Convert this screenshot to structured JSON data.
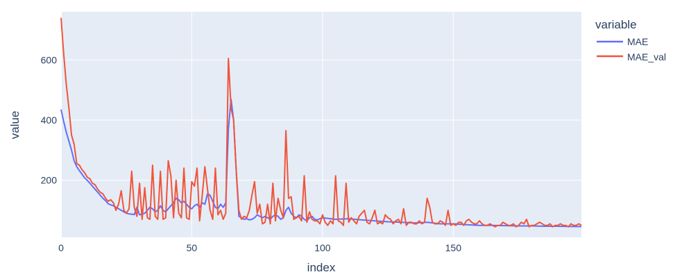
{
  "chart_data": {
    "type": "line",
    "xlabel": "index",
    "ylabel": "value",
    "legend_title": "variable",
    "legend_position": "top-right",
    "grid": true,
    "colors": {
      "plot_bg": "#e5ecf6",
      "grid": "#ffffff",
      "MAE": "#636efa",
      "MAE_val": "#ef553b",
      "text": "#2a3f5f"
    },
    "xlim": [
      0,
      199
    ],
    "ylim": [
      10,
      760
    ],
    "x_ticks": [
      0,
      50,
      100,
      150
    ],
    "y_ticks": [
      200,
      400,
      600
    ],
    "series": [
      {
        "name": "MAE",
        "color": "#636efa",
        "x": [
          0,
          1,
          2,
          3,
          4,
          5,
          6,
          7,
          8,
          9,
          10,
          11,
          12,
          13,
          14,
          15,
          16,
          17,
          18,
          19,
          20,
          21,
          22,
          23,
          24,
          25,
          26,
          27,
          28,
          29,
          30,
          31,
          32,
          33,
          34,
          35,
          36,
          37,
          38,
          39,
          40,
          41,
          42,
          43,
          44,
          45,
          46,
          47,
          48,
          49,
          50,
          51,
          52,
          53,
          54,
          55,
          56,
          57,
          58,
          59,
          60,
          61,
          62,
          63,
          64,
          65,
          66,
          67,
          68,
          69,
          70,
          71,
          72,
          73,
          74,
          75,
          76,
          77,
          78,
          79,
          80,
          81,
          82,
          83,
          84,
          85,
          86,
          87,
          88,
          89,
          90,
          91,
          92,
          93,
          94,
          95,
          96,
          97,
          98,
          99,
          100,
          105,
          110,
          115,
          120,
          125,
          130,
          135,
          140,
          145,
          150,
          155,
          160,
          165,
          170,
          175,
          180,
          185,
          190,
          195,
          199
        ],
        "y": [
          435,
          395,
          360,
          330,
          300,
          265,
          245,
          232,
          220,
          208,
          200,
          190,
          180,
          170,
          160,
          150,
          140,
          132,
          122,
          118,
          115,
          110,
          105,
          100,
          95,
          90,
          88,
          87,
          86,
          110,
          85,
          87,
          90,
          100,
          110,
          105,
          95,
          100,
          115,
          100,
          95,
          105,
          115,
          125,
          140,
          135,
          125,
          130,
          120,
          110,
          105,
          115,
          120,
          110,
          125,
          120,
          155,
          150,
          130,
          110,
          105,
          120,
          110,
          125,
          370,
          470,
          400,
          230,
          80,
          75,
          70,
          72,
          68,
          70,
          75,
          85,
          80,
          75,
          80,
          75,
          70,
          80,
          85,
          80,
          70,
          75,
          100,
          110,
          90,
          80,
          75,
          85,
          80,
          70,
          65,
          75,
          80,
          70,
          68,
          72,
          75,
          70,
          72,
          68,
          65,
          62,
          60,
          58,
          60,
          55,
          55,
          52,
          50,
          50,
          49,
          48,
          48,
          47,
          47,
          46,
          46
        ]
      },
      {
        "name": "MAE_val",
        "color": "#ef553b",
        "x": [
          0,
          1,
          2,
          3,
          4,
          5,
          6,
          7,
          8,
          9,
          10,
          11,
          12,
          13,
          14,
          15,
          16,
          17,
          18,
          19,
          20,
          21,
          22,
          23,
          24,
          25,
          26,
          27,
          28,
          29,
          30,
          31,
          32,
          33,
          34,
          35,
          36,
          37,
          38,
          39,
          40,
          41,
          42,
          43,
          44,
          45,
          46,
          47,
          48,
          49,
          50,
          51,
          52,
          53,
          54,
          55,
          56,
          57,
          58,
          59,
          60,
          61,
          62,
          63,
          64,
          65,
          66,
          67,
          68,
          69,
          70,
          71,
          72,
          73,
          74,
          75,
          76,
          77,
          78,
          79,
          80,
          81,
          82,
          83,
          84,
          85,
          86,
          87,
          88,
          89,
          90,
          91,
          92,
          93,
          94,
          95,
          96,
          97,
          98,
          99,
          100,
          101,
          102,
          103,
          104,
          105,
          106,
          107,
          108,
          109,
          110,
          111,
          112,
          113,
          114,
          115,
          116,
          117,
          118,
          119,
          120,
          121,
          122,
          123,
          124,
          125,
          126,
          127,
          128,
          129,
          130,
          131,
          132,
          133,
          134,
          135,
          136,
          137,
          138,
          139,
          140,
          141,
          142,
          143,
          144,
          145,
          146,
          147,
          148,
          149,
          150,
          151,
          152,
          153,
          154,
          155,
          156,
          157,
          158,
          159,
          160,
          161,
          162,
          163,
          164,
          165,
          166,
          167,
          168,
          169,
          170,
          171,
          172,
          173,
          174,
          175,
          176,
          177,
          178,
          179,
          180,
          181,
          182,
          183,
          184,
          185,
          186,
          187,
          188,
          189,
          190,
          191,
          192,
          193,
          194,
          195,
          196,
          197,
          198,
          199
        ],
        "y": [
          740,
          620,
          520,
          440,
          350,
          320,
          255,
          250,
          235,
          225,
          210,
          205,
          190,
          185,
          170,
          160,
          155,
          140,
          130,
          135,
          125,
          100,
          120,
          165,
          100,
          90,
          105,
          230,
          110,
          80,
          190,
          70,
          175,
          75,
          70,
          250,
          80,
          70,
          230,
          70,
          75,
          265,
          215,
          75,
          200,
          90,
          75,
          240,
          75,
          70,
          195,
          180,
          240,
          65,
          150,
          245,
          170,
          100,
          70,
          240,
          85,
          100,
          70,
          90,
          605,
          440,
          400,
          230,
          100,
          70,
          80,
          75,
          100,
          150,
          195,
          90,
          120,
          55,
          60,
          120,
          55,
          190,
          65,
          140,
          100,
          75,
          365,
          140,
          145,
          70,
          75,
          80,
          65,
          215,
          60,
          95,
          70,
          65,
          65,
          55,
          85,
          60,
          50,
          65,
          55,
          215,
          65,
          60,
          50,
          190,
          60,
          75,
          65,
          55,
          80,
          90,
          100,
          60,
          55,
          75,
          100,
          55,
          60,
          55,
          85,
          75,
          70,
          55,
          65,
          70,
          55,
          105,
          50,
          60,
          60,
          55,
          55,
          65,
          55,
          60,
          140,
          110,
          60,
          55,
          55,
          65,
          60,
          50,
          100,
          50,
          55,
          50,
          60,
          60,
          50,
          65,
          70,
          60,
          55,
          55,
          65,
          55,
          50,
          50,
          55,
          50,
          45,
          50,
          50,
          60,
          55,
          50,
          50,
          55,
          45,
          50,
          60,
          55,
          70,
          45,
          50,
          50,
          55,
          60,
          55,
          50,
          50,
          55,
          45,
          50,
          50,
          55,
          50,
          50,
          45,
          55,
          50,
          50,
          55,
          50
        ]
      }
    ]
  }
}
